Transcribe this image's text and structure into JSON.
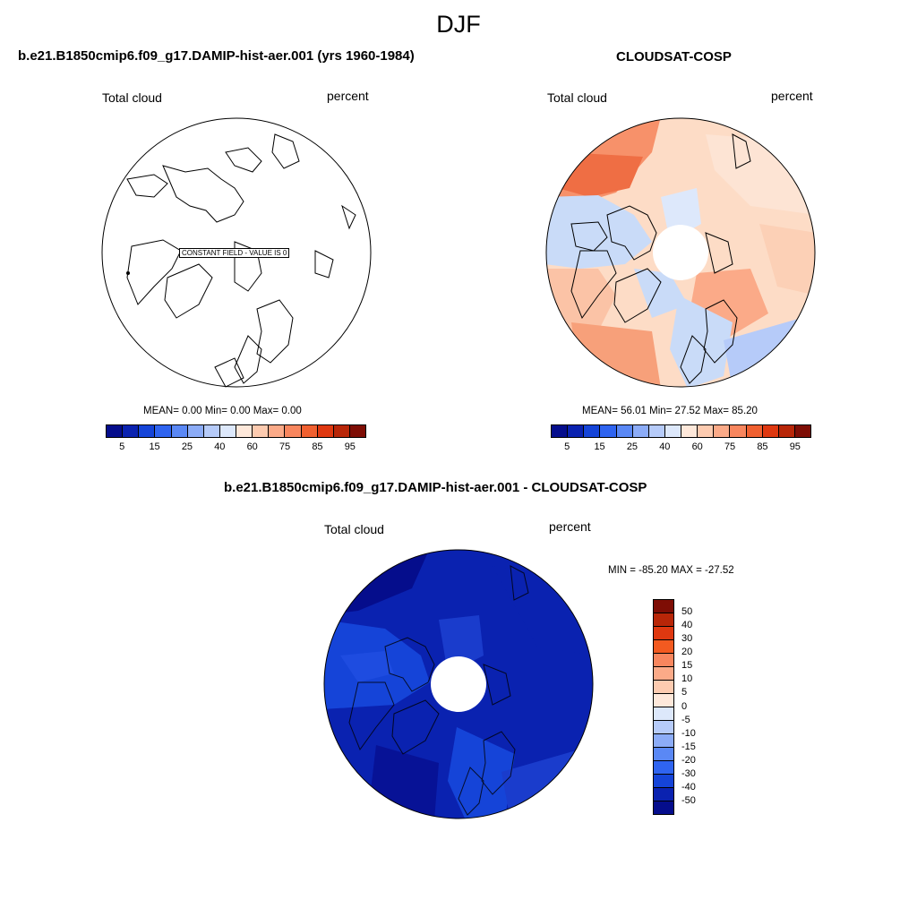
{
  "suptitle": "DJF",
  "panels": {
    "model": {
      "title": "b.e21.B1850cmip6.f09_g17.DAMIP-hist-aer.001 (yrs 1960-1984)",
      "var_label": "Total cloud",
      "units": "percent",
      "stats": "MEAN=   0.00  Min=   0.00  Max=   0.00",
      "constant_note": "CONSTANT FIELD - VALUE IS 0"
    },
    "obs": {
      "title": "CLOUDSAT-COSP",
      "var_label": "Total cloud",
      "units": "percent",
      "stats": "MEAN=  56.01  Min=  27.52  Max=  85.20"
    },
    "diff": {
      "title": "b.e21.B1850cmip6.f09_g17.DAMIP-hist-aer.001 - CLOUDSAT-COSP",
      "var_label": "Total cloud",
      "units": "percent",
      "minmax": "MIN = -85.20 MAX = -27.52"
    }
  },
  "chart_data": [
    {
      "type": "heatmap",
      "projection": "north-polar-stereographic",
      "title": "b.e21.B1850cmip6.f09_g17.DAMIP-hist-aer.001 (yrs 1960-1984)",
      "variable": "Total cloud",
      "units": "percent",
      "mean": 0.0,
      "min": 0.0,
      "max": 0.0,
      "constant_field": true,
      "colorbar_levels": [
        5,
        10,
        15,
        20,
        25,
        30,
        40,
        50,
        60,
        65,
        70,
        75,
        80,
        85,
        90,
        95
      ],
      "colorbar_ticks": [
        "5",
        "15",
        "25",
        "40",
        "60",
        "75",
        "85",
        "95"
      ]
    },
    {
      "type": "heatmap",
      "projection": "north-polar-stereographic",
      "title": "CLOUDSAT-COSP",
      "variable": "Total cloud",
      "units": "percent",
      "mean": 56.01,
      "min": 27.52,
      "max": 85.2,
      "colorbar_levels": [
        5,
        10,
        15,
        20,
        25,
        30,
        40,
        50,
        60,
        65,
        70,
        75,
        80,
        85,
        90,
        95
      ],
      "colorbar_ticks": [
        "5",
        "15",
        "25",
        "40",
        "60",
        "75",
        "85",
        "95"
      ]
    },
    {
      "type": "heatmap",
      "projection": "north-polar-stereographic",
      "title": "b.e21.B1850cmip6.f09_g17.DAMIP-hist-aer.001 - CLOUDSAT-COSP",
      "variable": "Total cloud",
      "units": "percent",
      "min": -85.2,
      "max": -27.52,
      "colorbar_ticks": [
        "50",
        "40",
        "30",
        "20",
        "15",
        "10",
        "5",
        "0",
        "-5",
        "-10",
        "-15",
        "-20",
        "-30",
        "-40",
        "-50"
      ]
    }
  ],
  "colors": {
    "seq16": [
      "#050d8c",
      "#0a22b0",
      "#1544d8",
      "#2f64f0",
      "#5a88f5",
      "#8cacf7",
      "#b6cbf9",
      "#dde8fb",
      "#fee8da",
      "#fdcbb0",
      "#fbaa88",
      "#f8865e",
      "#f06030",
      "#df3810",
      "#b82608",
      "#7e0d05"
    ],
    "div16": [
      "#7e0d05",
      "#b82608",
      "#df3810",
      "#f35a20",
      "#f8865e",
      "#fbaa88",
      "#fdcbb0",
      "#fee8da",
      "#dde8fb",
      "#b6cbf9",
      "#8cacf7",
      "#5a88f5",
      "#2f64f0",
      "#1544d8",
      "#0a22b0",
      "#050d8c"
    ]
  }
}
